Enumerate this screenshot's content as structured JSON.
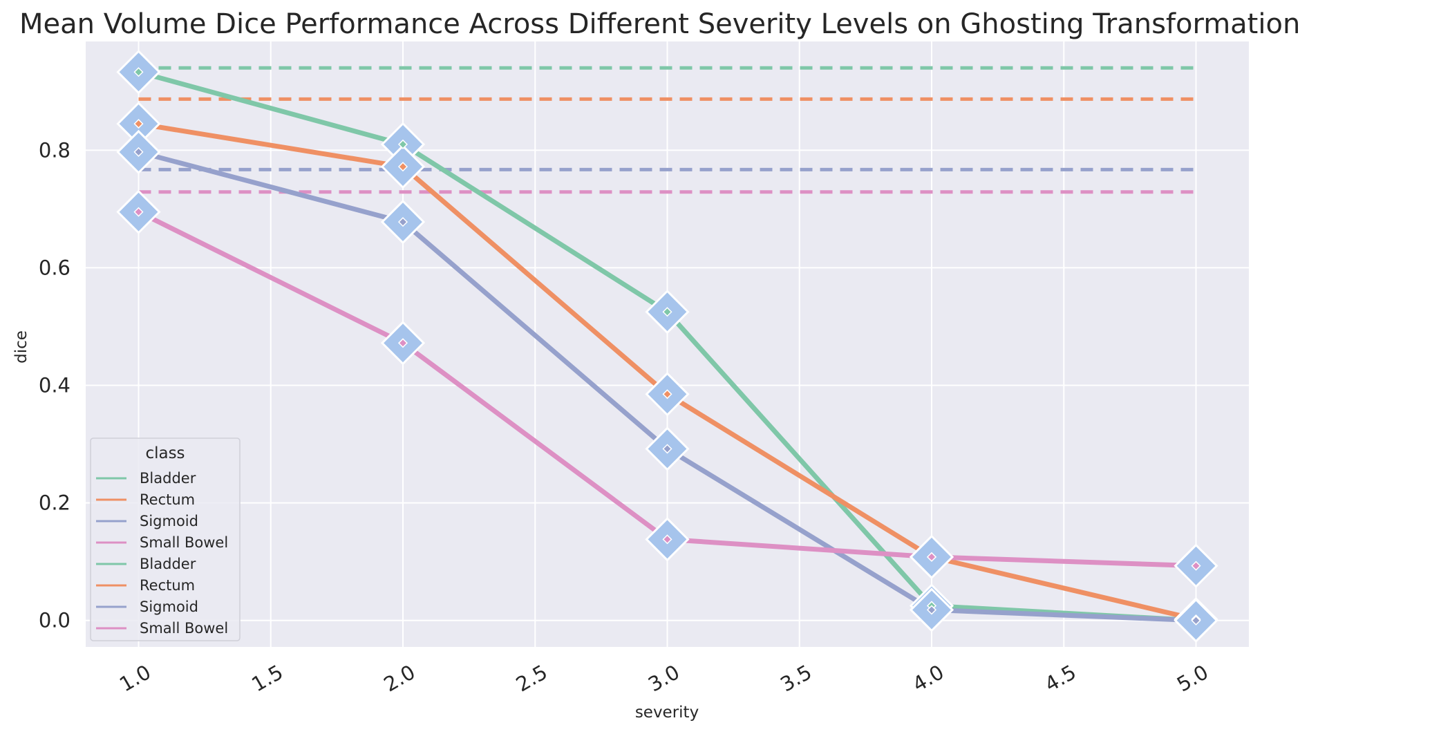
{
  "chart_data": {
    "type": "line",
    "title": "Mean Volume Dice Performance Across Different Severity Levels on Ghosting Transformation",
    "xlabel": "severity",
    "ylabel": "dice",
    "xlim": [
      0.8,
      5.2
    ],
    "ylim": [
      -0.045,
      0.985
    ],
    "xticks": [
      1.0,
      1.5,
      2.0,
      2.5,
      3.0,
      3.5,
      4.0,
      4.5,
      5.0
    ],
    "xtick_labels": [
      "1.0",
      "1.5",
      "2.0",
      "2.5",
      "3.0",
      "3.5",
      "4.0",
      "4.5",
      "5.0"
    ],
    "yticks": [
      0.0,
      0.2,
      0.4,
      0.6,
      0.8
    ],
    "ytick_labels": [
      "0.0",
      "0.2",
      "0.4",
      "0.6",
      "0.8"
    ],
    "grid": true,
    "x": [
      1.0,
      2.0,
      3.0,
      4.0,
      5.0
    ],
    "marker_color": "#a6c4ec",
    "series": [
      {
        "name": "Bladder",
        "color": "#7fc7a8",
        "values": [
          0.933,
          0.81,
          0.525,
          0.025,
          0.0
        ]
      },
      {
        "name": "Rectum",
        "color": "#ef9064",
        "values": [
          0.845,
          0.772,
          0.385,
          0.108,
          0.002
        ]
      },
      {
        "name": "Sigmoid",
        "color": "#96a1cc",
        "values": [
          0.797,
          0.678,
          0.292,
          0.018,
          0.0
        ]
      },
      {
        "name": "Small Bowel",
        "color": "#dd90c4",
        "values": [
          0.695,
          0.472,
          0.138,
          0.108,
          0.093
        ]
      }
    ],
    "baselines": [
      {
        "name": "Bladder",
        "color": "#7fc7a8",
        "value": 0.94
      },
      {
        "name": "Rectum",
        "color": "#ef9064",
        "value": 0.887
      },
      {
        "name": "Sigmoid",
        "color": "#96a1cc",
        "value": 0.767
      },
      {
        "name": "Small Bowel",
        "color": "#dd90c4",
        "value": 0.729
      }
    ],
    "legend": {
      "title": "class",
      "placement": "lower-left",
      "entries": [
        {
          "label": "Bladder",
          "color": "#7fc7a8"
        },
        {
          "label": "Rectum",
          "color": "#ef9064"
        },
        {
          "label": "Sigmoid",
          "color": "#96a1cc"
        },
        {
          "label": "Small Bowel",
          "color": "#dd90c4"
        },
        {
          "label": "Bladder",
          "color": "#7fc7a8"
        },
        {
          "label": "Rectum",
          "color": "#ef9064"
        },
        {
          "label": "Sigmoid",
          "color": "#96a1cc"
        },
        {
          "label": "Small Bowel",
          "color": "#dd90c4"
        }
      ]
    },
    "colors": {
      "plot_background": "#eaeaf2",
      "grid": "#ffffff",
      "text": "#262626"
    }
  }
}
